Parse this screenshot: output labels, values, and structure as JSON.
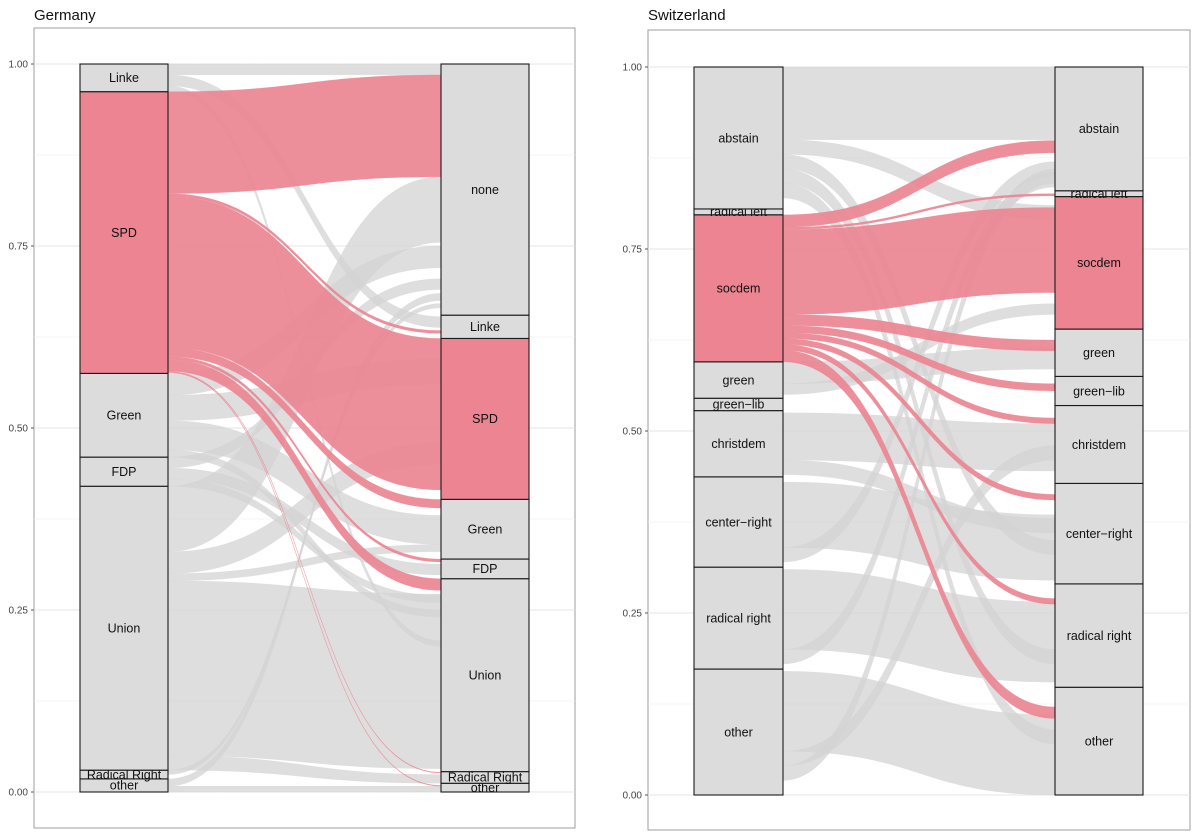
{
  "chart_data": [
    {
      "type": "alluvial",
      "title": "Germany",
      "ylim": [
        0,
        1
      ],
      "y_ticks": [
        "0.00",
        "0.25",
        "0.50",
        "0.75",
        "1.00"
      ],
      "grid": true,
      "highlight_color": "#ec8492",
      "node_color": "#dcdcdc",
      "flow_color": "#d3d3d3",
      "left_axis": {
        "nodes": [
          {
            "label": "other",
            "start": 0.0,
            "end": 0.018,
            "highlight": false
          },
          {
            "label": "Radical Right",
            "start": 0.018,
            "end": 0.03,
            "highlight": false
          },
          {
            "label": "Union",
            "start": 0.03,
            "end": 0.42,
            "highlight": false
          },
          {
            "label": "FDP",
            "start": 0.42,
            "end": 0.46,
            "highlight": false
          },
          {
            "label": "Green",
            "start": 0.46,
            "end": 0.575,
            "highlight": false
          },
          {
            "label": "SPD",
            "start": 0.575,
            "end": 0.962,
            "highlight": true
          },
          {
            "label": "Linke",
            "start": 0.962,
            "end": 1.0,
            "highlight": false
          }
        ]
      },
      "right_axis": {
        "nodes": [
          {
            "label": "other",
            "start": 0.0,
            "end": 0.012,
            "highlight": false
          },
          {
            "label": "Radical Right",
            "start": 0.012,
            "end": 0.028,
            "highlight": false
          },
          {
            "label": "Union",
            "start": 0.028,
            "end": 0.293,
            "highlight": false
          },
          {
            "label": "FDP",
            "start": 0.293,
            "end": 0.32,
            "highlight": false
          },
          {
            "label": "Green",
            "start": 0.32,
            "end": 0.402,
            "highlight": false
          },
          {
            "label": "SPD",
            "start": 0.402,
            "end": 0.623,
            "highlight": true
          },
          {
            "label": "Linke",
            "start": 0.623,
            "end": 0.655,
            "highlight": false
          },
          {
            "label": "none",
            "start": 0.655,
            "end": 1.0,
            "highlight": false
          }
        ]
      },
      "flows": [
        {
          "from": "SPD",
          "to": "none",
          "s0": 0.822,
          "s1": 0.962,
          "t0": 0.845,
          "t1": 0.985,
          "highlight": true
        },
        {
          "from": "SPD",
          "to": "Linke",
          "s0": 0.818,
          "s1": 0.822,
          "t0": 0.63,
          "t1": 0.634,
          "highlight": true
        },
        {
          "from": "SPD",
          "to": "SPD",
          "s0": 0.61,
          "s1": 0.818,
          "t0": 0.415,
          "t1": 0.623,
          "highlight": true
        },
        {
          "from": "SPD",
          "to": "Green",
          "s0": 0.598,
          "s1": 0.61,
          "t0": 0.39,
          "t1": 0.402,
          "highlight": true
        },
        {
          "from": "SPD",
          "to": "FDP",
          "s0": 0.594,
          "s1": 0.598,
          "t0": 0.316,
          "t1": 0.32,
          "highlight": true
        },
        {
          "from": "SPD",
          "to": "Union",
          "s0": 0.578,
          "s1": 0.594,
          "t0": 0.277,
          "t1": 0.293,
          "highlight": true
        },
        {
          "from": "SPD",
          "to": "Radical Right",
          "s0": 0.577,
          "s1": 0.578,
          "t0": 0.026,
          "t1": 0.027,
          "highlight": true
        },
        {
          "from": "SPD",
          "to": "other",
          "s0": 0.576,
          "s1": 0.577,
          "t0": 0.008,
          "t1": 0.009,
          "highlight": true
        },
        {
          "from": "Linke",
          "to": "none",
          "s0": 0.985,
          "s1": 1.0,
          "t0": 0.985,
          "t1": 1.0,
          "highlight": false
        },
        {
          "from": "Linke",
          "to": "Linke",
          "s0": 0.97,
          "s1": 0.985,
          "t0": 0.638,
          "t1": 0.653,
          "highlight": false
        },
        {
          "from": "Linke",
          "to": "Union",
          "s0": 0.962,
          "s1": 0.97,
          "t0": 0.2,
          "t1": 0.208,
          "highlight": false
        },
        {
          "from": "Green",
          "to": "none",
          "s0": 0.545,
          "s1": 0.575,
          "t0": 0.72,
          "t1": 0.75,
          "highlight": false
        },
        {
          "from": "Green",
          "to": "SPD",
          "s0": 0.51,
          "s1": 0.545,
          "t0": 0.56,
          "t1": 0.595,
          "highlight": false
        },
        {
          "from": "Green",
          "to": "Green",
          "s0": 0.47,
          "s1": 0.51,
          "t0": 0.34,
          "t1": 0.38,
          "highlight": false
        },
        {
          "from": "Green",
          "to": "Union",
          "s0": 0.46,
          "s1": 0.47,
          "t0": 0.24,
          "t1": 0.25,
          "highlight": false
        },
        {
          "from": "FDP",
          "to": "none",
          "s0": 0.445,
          "s1": 0.46,
          "t0": 0.69,
          "t1": 0.705,
          "highlight": false
        },
        {
          "from": "FDP",
          "to": "FDP",
          "s0": 0.43,
          "s1": 0.445,
          "t0": 0.298,
          "t1": 0.313,
          "highlight": false
        },
        {
          "from": "FDP",
          "to": "Union",
          "s0": 0.42,
          "s1": 0.43,
          "t0": 0.26,
          "t1": 0.27,
          "highlight": false
        },
        {
          "from": "Union",
          "to": "none",
          "s0": 0.33,
          "s1": 0.42,
          "t0": 0.755,
          "t1": 0.845,
          "highlight": false
        },
        {
          "from": "Union",
          "to": "SPD",
          "s0": 0.3,
          "s1": 0.33,
          "t0": 0.45,
          "t1": 0.48,
          "highlight": false
        },
        {
          "from": "Union",
          "to": "Green",
          "s0": 0.29,
          "s1": 0.3,
          "t0": 0.33,
          "t1": 0.34,
          "highlight": false
        },
        {
          "from": "Union",
          "to": "Union",
          "s0": 0.05,
          "s1": 0.29,
          "t0": 0.032,
          "t1": 0.272,
          "highlight": false
        },
        {
          "from": "Union",
          "to": "Radical Right",
          "s0": 0.03,
          "s1": 0.05,
          "t0": 0.012,
          "t1": 0.024,
          "highlight": false
        },
        {
          "from": "Radical Right",
          "to": "none",
          "s0": 0.024,
          "s1": 0.03,
          "t0": 0.665,
          "t1": 0.671,
          "highlight": false
        },
        {
          "from": "other",
          "to": "none",
          "s0": 0.008,
          "s1": 0.018,
          "t0": 0.675,
          "t1": 0.685,
          "highlight": false
        },
        {
          "from": "other",
          "to": "other",
          "s0": 0.0,
          "s1": 0.008,
          "t0": 0.0,
          "t1": 0.008,
          "highlight": false
        }
      ]
    },
    {
      "type": "alluvial",
      "title": "Switzerland",
      "ylim": [
        0,
        1
      ],
      "y_ticks": [
        "0.00",
        "0.25",
        "0.50",
        "0.75",
        "1.00"
      ],
      "grid": true,
      "highlight_color": "#ec8492",
      "node_color": "#dcdcdc",
      "flow_color": "#d3d3d3",
      "left_axis": {
        "nodes": [
          {
            "label": "other",
            "start": 0.0,
            "end": 0.173,
            "highlight": false
          },
          {
            "label": "radical right",
            "start": 0.173,
            "end": 0.313,
            "highlight": false
          },
          {
            "label": "center−right",
            "start": 0.313,
            "end": 0.437,
            "highlight": false
          },
          {
            "label": "christdem",
            "start": 0.437,
            "end": 0.528,
            "highlight": false
          },
          {
            "label": "green−lib",
            "start": 0.528,
            "end": 0.545,
            "highlight": false
          },
          {
            "label": "green",
            "start": 0.545,
            "end": 0.595,
            "highlight": false
          },
          {
            "label": "socdem",
            "start": 0.595,
            "end": 0.797,
            "highlight": true
          },
          {
            "label": "radical left",
            "start": 0.797,
            "end": 0.805,
            "highlight": false
          },
          {
            "label": "abstain",
            "start": 0.805,
            "end": 1.0,
            "highlight": false
          }
        ]
      },
      "right_axis": {
        "nodes": [
          {
            "label": "other",
            "start": 0.0,
            "end": 0.148,
            "highlight": false
          },
          {
            "label": "radical right",
            "start": 0.148,
            "end": 0.29,
            "highlight": false
          },
          {
            "label": "center−right",
            "start": 0.29,
            "end": 0.428,
            "highlight": false
          },
          {
            "label": "christdem",
            "start": 0.428,
            "end": 0.535,
            "highlight": false
          },
          {
            "label": "green−lib",
            "start": 0.535,
            "end": 0.575,
            "highlight": false
          },
          {
            "label": "green",
            "start": 0.575,
            "end": 0.64,
            "highlight": false
          },
          {
            "label": "socdem",
            "start": 0.64,
            "end": 0.822,
            "highlight": true
          },
          {
            "label": "radical left",
            "start": 0.822,
            "end": 0.83,
            "highlight": false
          },
          {
            "label": "abstain",
            "start": 0.83,
            "end": 1.0,
            "highlight": false
          }
        ]
      },
      "flows": [
        {
          "from": "socdem",
          "to": "abstain",
          "s0": 0.78,
          "s1": 0.797,
          "t0": 0.882,
          "t1": 0.899,
          "highlight": true
        },
        {
          "from": "socdem",
          "to": "radical left",
          "s0": 0.777,
          "s1": 0.78,
          "t0": 0.823,
          "t1": 0.826,
          "highlight": true
        },
        {
          "from": "socdem",
          "to": "socdem",
          "s0": 0.66,
          "s1": 0.777,
          "t0": 0.69,
          "t1": 0.807,
          "highlight": true
        },
        {
          "from": "socdem",
          "to": "green",
          "s0": 0.645,
          "s1": 0.66,
          "t0": 0.61,
          "t1": 0.625,
          "highlight": true
        },
        {
          "from": "socdem",
          "to": "green−lib",
          "s0": 0.635,
          "s1": 0.645,
          "t0": 0.555,
          "t1": 0.565,
          "highlight": true
        },
        {
          "from": "socdem",
          "to": "christdem",
          "s0": 0.627,
          "s1": 0.635,
          "t0": 0.51,
          "t1": 0.518,
          "highlight": true
        },
        {
          "from": "socdem",
          "to": "center−right",
          "s0": 0.619,
          "s1": 0.627,
          "t0": 0.405,
          "t1": 0.413,
          "highlight": true
        },
        {
          "from": "socdem",
          "to": "radical right",
          "s0": 0.611,
          "s1": 0.619,
          "t0": 0.262,
          "t1": 0.27,
          "highlight": true
        },
        {
          "from": "socdem",
          "to": "other",
          "s0": 0.595,
          "s1": 0.611,
          "t0": 0.105,
          "t1": 0.121,
          "highlight": true
        },
        {
          "from": "abstain",
          "to": "abstain",
          "s0": 0.9,
          "s1": 1.0,
          "t0": 0.9,
          "t1": 1.0,
          "highlight": false
        },
        {
          "from": "abstain",
          "to": "socdem",
          "s0": 0.88,
          "s1": 0.9,
          "t0": 0.79,
          "t1": 0.81,
          "highlight": false
        },
        {
          "from": "abstain",
          "to": "center−right",
          "s0": 0.86,
          "s1": 0.88,
          "t0": 0.33,
          "t1": 0.35,
          "highlight": false
        },
        {
          "from": "abstain",
          "to": "radical right",
          "s0": 0.84,
          "s1": 0.86,
          "t0": 0.18,
          "t1": 0.2,
          "highlight": false
        },
        {
          "from": "abstain",
          "to": "other",
          "s0": 0.82,
          "s1": 0.84,
          "t0": 0.07,
          "t1": 0.09,
          "highlight": false
        },
        {
          "from": "green",
          "to": "green",
          "s0": 0.565,
          "s1": 0.595,
          "t0": 0.585,
          "t1": 0.615,
          "highlight": false
        },
        {
          "from": "green",
          "to": "socdem",
          "s0": 0.55,
          "s1": 0.565,
          "t0": 0.66,
          "t1": 0.675,
          "highlight": false
        },
        {
          "from": "christdem",
          "to": "christdem",
          "s0": 0.46,
          "s1": 0.525,
          "t0": 0.445,
          "t1": 0.51,
          "highlight": false
        },
        {
          "from": "christdem",
          "to": "center−right",
          "s0": 0.44,
          "s1": 0.46,
          "t0": 0.36,
          "t1": 0.38,
          "highlight": false
        },
        {
          "from": "center−right",
          "to": "center−right",
          "s0": 0.34,
          "s1": 0.43,
          "t0": 0.295,
          "t1": 0.385,
          "highlight": false
        },
        {
          "from": "center−right",
          "to": "abstain",
          "s0": 0.32,
          "s1": 0.34,
          "t0": 0.85,
          "t1": 0.87,
          "highlight": false
        },
        {
          "from": "radical right",
          "to": "radical right",
          "s0": 0.2,
          "s1": 0.31,
          "t0": 0.155,
          "t1": 0.265,
          "highlight": false
        },
        {
          "from": "radical right",
          "to": "abstain",
          "s0": 0.18,
          "s1": 0.2,
          "t0": 0.835,
          "t1": 0.855,
          "highlight": false
        },
        {
          "from": "other",
          "to": "other",
          "s0": 0.06,
          "s1": 0.17,
          "t0": 0.0,
          "t1": 0.11,
          "highlight": false
        },
        {
          "from": "other",
          "to": "christdem",
          "s0": 0.04,
          "s1": 0.06,
          "t0": 0.46,
          "t1": 0.48,
          "highlight": false
        },
        {
          "from": "other",
          "to": "abstain",
          "s0": 0.02,
          "s1": 0.04,
          "t0": 0.84,
          "t1": 0.86,
          "highlight": false
        }
      ]
    }
  ]
}
